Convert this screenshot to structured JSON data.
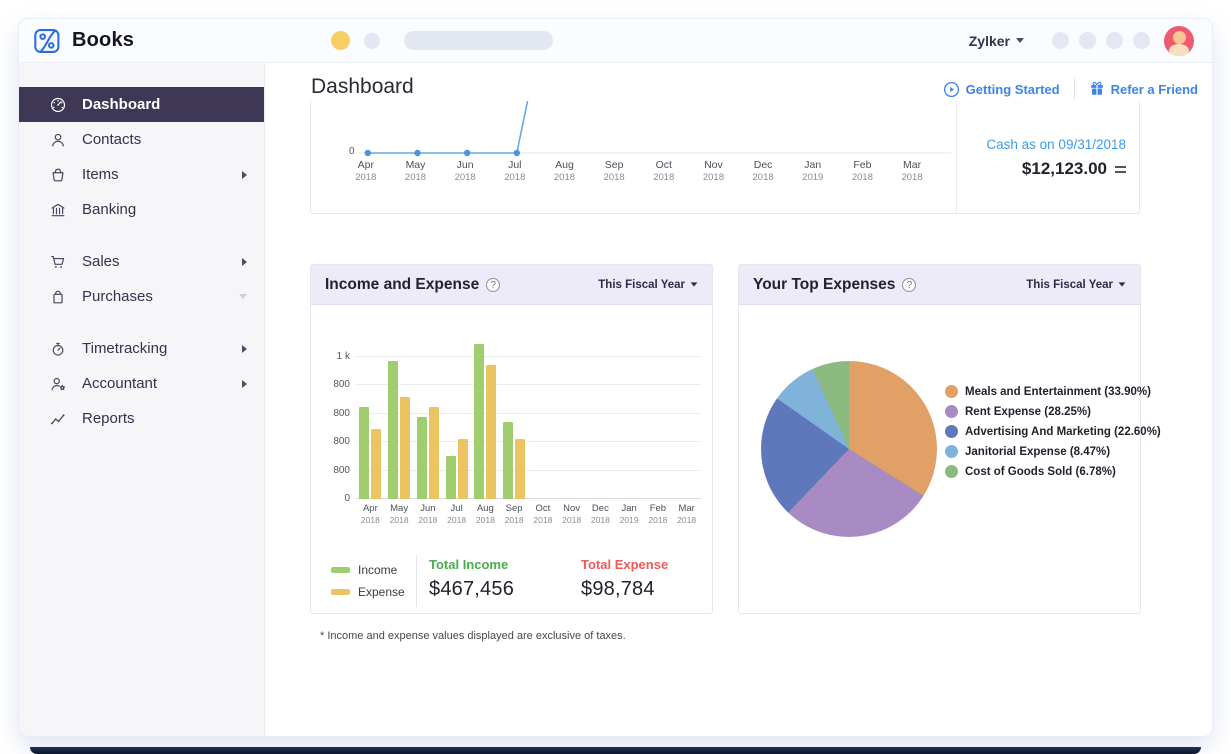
{
  "topbar": {
    "brand": "Books",
    "org_name": "Zylker"
  },
  "sidebar": {
    "items": [
      {
        "label": "Dashboard",
        "icon": "dashboard-gauge-icon",
        "active": true
      },
      {
        "label": "Contacts",
        "icon": "contacts-person-icon"
      },
      {
        "label": "Items",
        "icon": "items-basket-icon",
        "chevron": "right"
      },
      {
        "label": "Banking",
        "icon": "banking-bank-icon"
      },
      {
        "label": "Sales",
        "icon": "sales-cart-icon",
        "chevron": "right",
        "gap_before": true
      },
      {
        "label": "Purchases",
        "icon": "purchases-bag-icon",
        "chevron": "down"
      },
      {
        "label": "Timetracking",
        "icon": "timetracking-stopwatch-icon",
        "chevron": "right",
        "gap_before": true
      },
      {
        "label": "Accountant",
        "icon": "accountant-person-icon",
        "chevron": "right"
      },
      {
        "label": "Reports",
        "icon": "reports-trend-icon"
      }
    ]
  },
  "header": {
    "title": "Dashboard",
    "getting_started": "Getting Started",
    "refer_friend": "Refer a Friend"
  },
  "months": [
    [
      "Apr",
      "2018"
    ],
    [
      "May",
      "2018"
    ],
    [
      "Jun",
      "2018"
    ],
    [
      "Jul",
      "2018"
    ],
    [
      "Aug",
      "2018"
    ],
    [
      "Sep",
      "2018"
    ],
    [
      "Oct",
      "2018"
    ],
    [
      "Nov",
      "2018"
    ],
    [
      "Dec",
      "2018"
    ],
    [
      "Jan",
      "2019"
    ],
    [
      "Feb",
      "2018"
    ],
    [
      "Mar",
      "2018"
    ]
  ],
  "cashflow": {
    "zero_label": "0",
    "cash_label": "Cash as on 09/31/2018",
    "cash_value": "$12,123.00"
  },
  "income_expense": {
    "title": "Income and Expense",
    "period": "This Fiscal Year",
    "y_ticks_top_to_bottom": [
      "1 k",
      "800",
      "800",
      "800",
      "800",
      "0"
    ],
    "total_income_label": "Total Income",
    "total_income_value": "$467,456",
    "total_expense_label": "Total Expense",
    "total_expense_value": "$98,784"
  },
  "top_expenses": {
    "title": "Your Top Expenses",
    "period": "This Fiscal Year"
  },
  "footnote": "* Income and expense values displayed are exclusive of taxes.",
  "colors": {
    "accent_blue": "#3B85E8",
    "cash_link_blue": "#3D9BE9",
    "sidebar_active_bg": "#3E3755",
    "line_blue": "#67A8E6",
    "income_green": "#A0CE6E",
    "expense_yellow": "#ECC562",
    "total_income_green": "#47AF4B",
    "total_expense_red": "#EF5A5A"
  },
  "chart_data": [
    {
      "type": "line",
      "title": "Cash Flow (top of chart cropped out of view)",
      "x": [
        "Apr 2018",
        "May 2018",
        "Jun 2018",
        "Jul 2018",
        "Aug 2018",
        "Sep 2018",
        "Oct 2018",
        "Nov 2018",
        "Dec 2018",
        "Jan 2019",
        "Feb 2018",
        "Mar 2018"
      ],
      "visible_values": [
        0,
        0,
        0,
        0
      ],
      "note": "Blue line with dots sits at 0 from Apr 2018 to Jul 2018, then rises steeply past the visible top edge just after Jul 2018",
      "ylabel_visible_tick": "0",
      "annotation": {
        "label": "Cash as on 09/31/2018",
        "value": "$12,123.00"
      }
    },
    {
      "type": "bar",
      "title": "Income and Expense",
      "categories": [
        "Apr 2018",
        "May 2018",
        "Jun 2018",
        "Jul 2018",
        "Aug 2018",
        "Sep 2018",
        "Oct 2018",
        "Nov 2018",
        "Dec 2018",
        "Jan 2019",
        "Feb 2018",
        "Mar 2018"
      ],
      "series": [
        {
          "name": "Income",
          "color": "#A0CE6E",
          "values": [
            645,
            970,
            580,
            300,
            1095,
            540,
            0,
            0,
            0,
            0,
            0,
            0
          ]
        },
        {
          "name": "Expense",
          "color": "#ECC562",
          "values": [
            490,
            720,
            645,
            420,
            945,
            425,
            0,
            0,
            0,
            0,
            0,
            0
          ]
        }
      ],
      "y_tick_labels_top_to_bottom": [
        "1 k",
        "800",
        "800",
        "800",
        "800",
        "0"
      ],
      "ylim": [
        0,
        1105
      ],
      "grid": true,
      "legend_position": "bottom-left",
      "totals": {
        "income": "$467,456",
        "expense": "$98,784"
      }
    },
    {
      "type": "pie",
      "title": "Your Top Expenses",
      "slices": [
        {
          "label": "Meals and Entertainment",
          "pct": 33.9,
          "color": "#E1A065"
        },
        {
          "label": "Rent Expense",
          "pct": 28.25,
          "color": "#A98BC4"
        },
        {
          "label": "Advertising And Marketing",
          "pct": 22.6,
          "color": "#5F78BC"
        },
        {
          "label": "Janitorial Expense",
          "pct": 8.47,
          "color": "#7FB3D9"
        },
        {
          "label": "Cost of Goods Sold",
          "pct": 6.78,
          "color": "#8CBA7E"
        }
      ],
      "legend_position": "right",
      "start_angle_deg": 0,
      "direction": "clockwise"
    }
  ]
}
